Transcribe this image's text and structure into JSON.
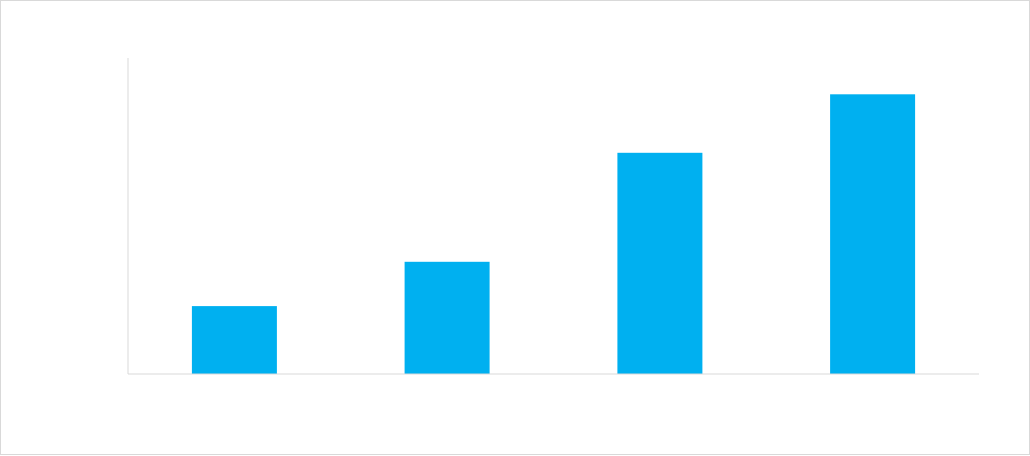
{
  "chart_data": {
    "type": "bar",
    "categories": [
      "",
      "",
      "",
      ""
    ],
    "values": [
      21.5,
      35.5,
      70,
      88.5
    ],
    "ylim": [
      0,
      100
    ],
    "grid": false,
    "legend": "none",
    "colors": {
      "bar": "#00B0F0",
      "axis": "#d9d9d9",
      "border": "#d9d9d9"
    }
  }
}
